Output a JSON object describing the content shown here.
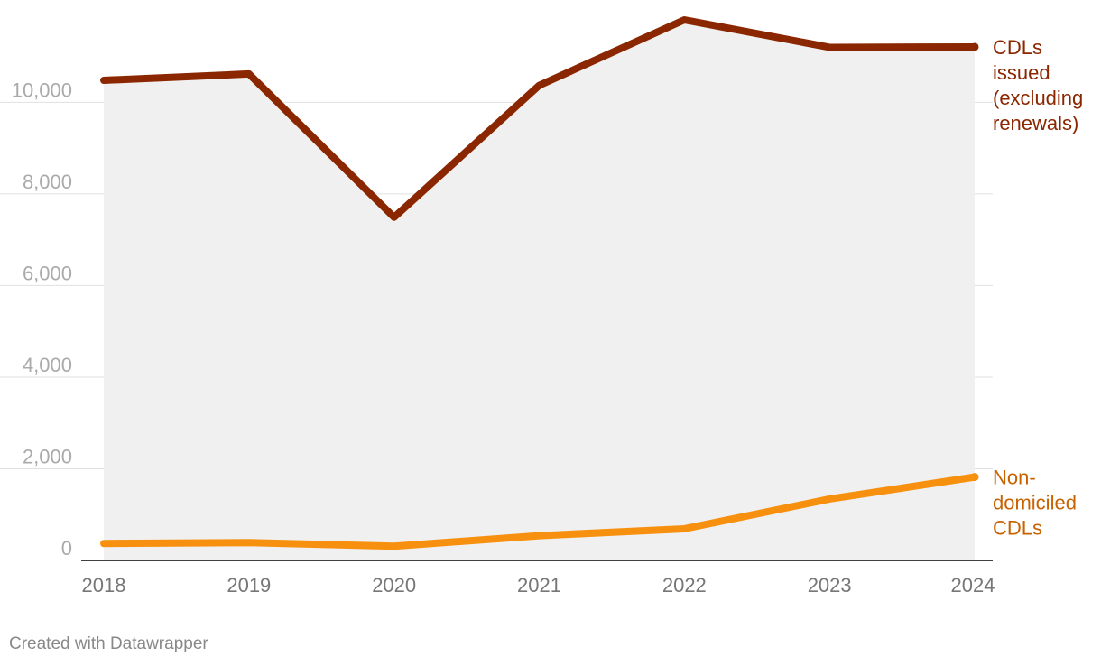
{
  "chart_data": {
    "type": "line",
    "x": [
      "2018",
      "2019",
      "2020",
      "2021",
      "2022",
      "2023",
      "2024"
    ],
    "ylim": [
      0,
      11800
    ],
    "yticks": [
      0,
      2000,
      4000,
      6000,
      8000,
      10000
    ],
    "ytick_labels": [
      "0",
      "2,000",
      "4,000",
      "6,000",
      "8,000",
      "10,000"
    ],
    "grid": true,
    "shaded_area_under_series": "CDLs issued (excluding renewals)",
    "series": [
      {
        "name": "CDLs issued (excluding renewals)",
        "label_lines": [
          "CDLs",
          "issued",
          "(excluding",
          "renewals)"
        ],
        "color": "#8b2700",
        "label_color": "#8b2700",
        "values": [
          10480,
          10620,
          7490,
          10370,
          11800,
          11200,
          11210
        ]
      },
      {
        "name": "Non-domiciled CDLs",
        "label_lines": [
          "Non-",
          "domiciled",
          "CDLs"
        ],
        "color": "#f7900e",
        "label_color": "#c86200",
        "values": [
          370,
          390,
          310,
          540,
          690,
          1340,
          1820
        ]
      }
    ]
  },
  "footer": {
    "credit": "Created with Datawrapper"
  },
  "colors": {
    "area_fill": "#f0f0f0",
    "gridline": "#e0e0e0",
    "baseline": "#000000"
  }
}
